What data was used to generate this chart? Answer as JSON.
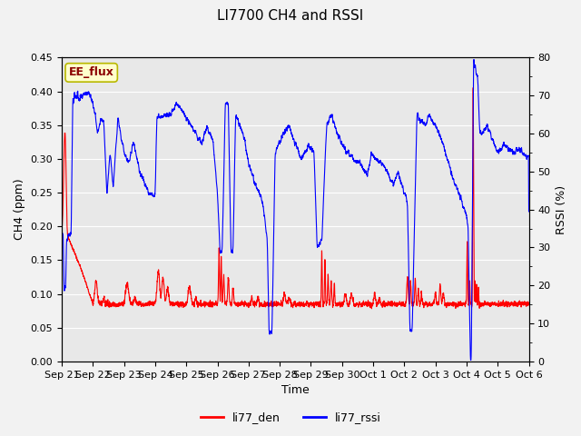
{
  "title": "LI7700 CH4 and RSSI",
  "ylabel_left": "CH4 (ppm)",
  "ylabel_right": "RSSI (%)",
  "xlabel": "Time",
  "ylim_left": [
    0.0,
    0.45
  ],
  "ylim_right": [
    0,
    80
  ],
  "fig_facecolor": "#f2f2f2",
  "plot_facecolor": "#e8e8e8",
  "legend_labels": [
    "li77_den",
    "li77_rssi"
  ],
  "watermark_text": "EE_flux",
  "watermark_color": "#8B0000",
  "watermark_bg": "#ffffcc",
  "watermark_border": "#b8b800",
  "title_fontsize": 11,
  "label_fontsize": 9,
  "tick_fontsize": 8,
  "date_labels": [
    "Sep 21",
    "Sep 22",
    "Sep 23",
    "Sep 24",
    "Sep 25",
    "Sep 26",
    "Sep 27",
    "Sep 28",
    "Sep 29",
    "Sep 30",
    "Oct 1",
    "Oct 2",
    "Oct 3",
    "Oct 4",
    "Oct 5",
    "Oct 6"
  ],
  "yticks_left": [
    0.0,
    0.05,
    0.1,
    0.15,
    0.2,
    0.25,
    0.3,
    0.35,
    0.4,
    0.45
  ],
  "yticks_right": [
    0,
    10,
    20,
    30,
    40,
    50,
    60,
    70,
    80
  ],
  "grid_color": "#ffffff",
  "ch4_color": "red",
  "rssi_color": "blue",
  "linewidth": 0.8
}
